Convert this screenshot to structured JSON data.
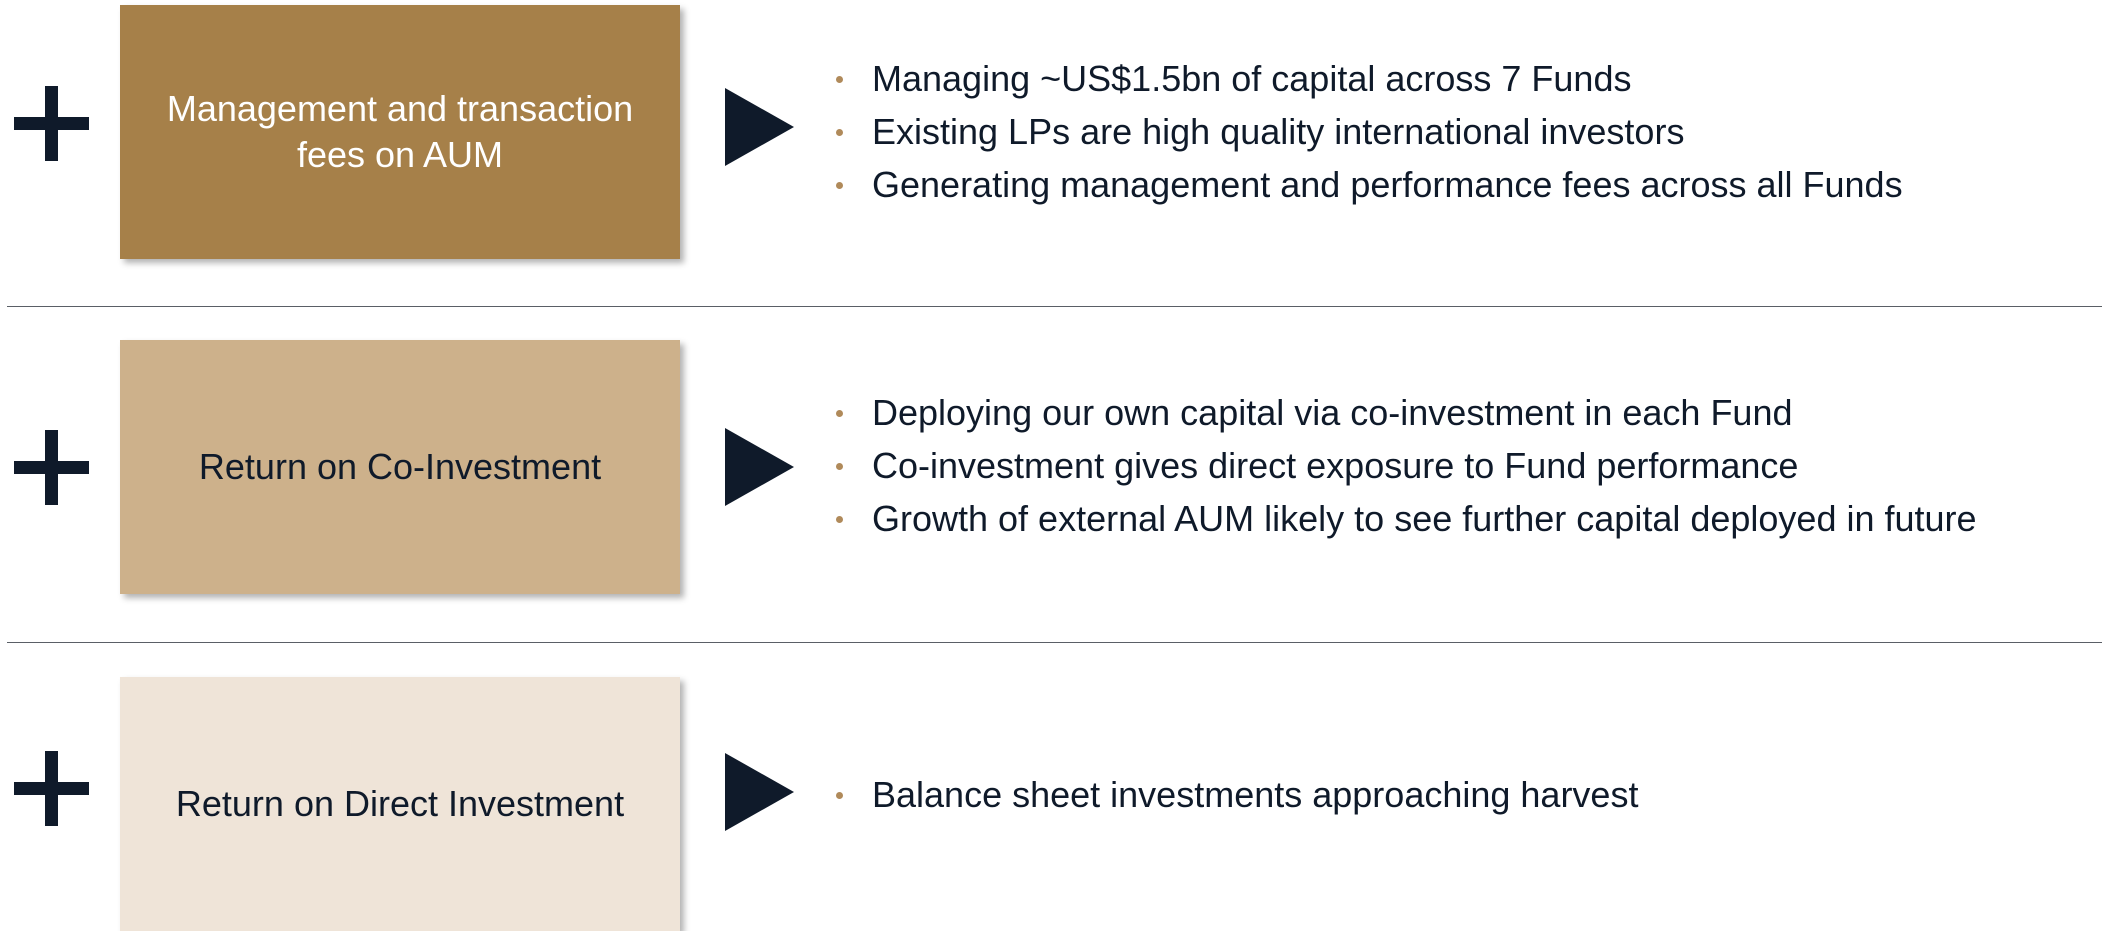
{
  "rows": [
    {
      "label": "Management and transaction fees on AUM",
      "bullets": [
        "Managing ~US$1.5bn of capital across 7 Funds",
        "Existing LPs are high quality international investors",
        "Generating management and performance fees across all Funds"
      ]
    },
    {
      "label": "Return on Co-Investment",
      "bullets": [
        "Deploying our own capital via co-investment in each Fund",
        "Co-investment gives direct exposure to Fund performance",
        "Growth of external AUM likely to see further capital deployed in future"
      ]
    },
    {
      "label": "Return on Direct Investment",
      "bullets": [
        "Balance sheet investments approaching harvest"
      ]
    }
  ]
}
